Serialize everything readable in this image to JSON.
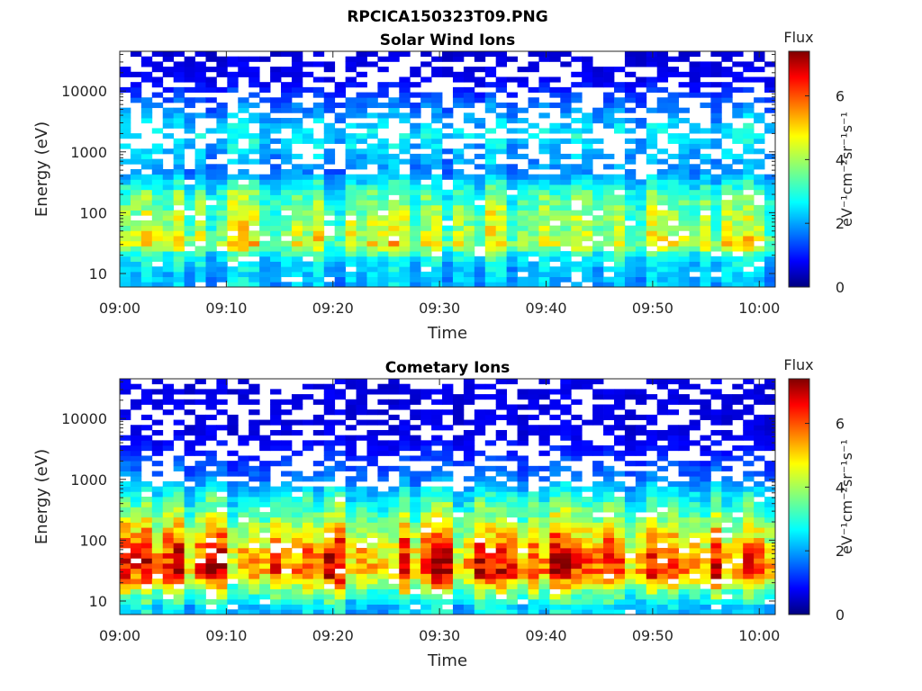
{
  "figure_title": "RPCICA150323T09.PNG",
  "colormap": [
    "#00007f",
    "#0000ff",
    "#007fff",
    "#00ffff",
    "#7fff7f",
    "#ffff00",
    "#ff7f00",
    "#ff0000",
    "#7f0000"
  ],
  "chart_data": [
    {
      "type": "heatmap",
      "title": "Solar Wind Ions",
      "xlabel": "Time",
      "ylabel": "Energy (eV)",
      "x_ticks": [
        "09:00",
        "09:10",
        "09:20",
        "09:30",
        "09:40",
        "09:50",
        "10:00"
      ],
      "y_ticks": [
        "10",
        "100",
        "1000",
        "10000"
      ],
      "y_scale": "log",
      "ylim": [
        6,
        45000
      ],
      "xlim_minutes": [
        0,
        61.5
      ],
      "colorbar": {
        "label": "Flux",
        "unit": "eV⁻¹cm⁻²sr⁻¹s⁻¹",
        "ticks": [
          "0",
          "2",
          "4",
          "6"
        ],
        "range": [
          0,
          7.4
        ]
      },
      "approx_flux_profile": [
        {
          "energy_eV": 8,
          "flux": 2.2
        },
        {
          "energy_eV": 12,
          "flux": 2.3
        },
        {
          "energy_eV": 20,
          "flux": 2.8
        },
        {
          "energy_eV": 30,
          "flux": 4.2
        },
        {
          "energy_eV": 50,
          "flux": 3.8
        },
        {
          "energy_eV": 100,
          "flux": 3.6
        },
        {
          "energy_eV": 200,
          "flux": 3.2
        },
        {
          "energy_eV": 500,
          "flux": 1.8
        },
        {
          "energy_eV": 2000,
          "flux": 2.6
        },
        {
          "energy_eV": 5000,
          "flux": 1.8
        },
        {
          "energy_eV": 15000,
          "flux": 0.8
        },
        {
          "energy_eV": 40000,
          "flux": 0.6
        }
      ]
    },
    {
      "type": "heatmap",
      "title": "Cometary Ions",
      "xlabel": "Time",
      "ylabel": "Energy (eV)",
      "x_ticks": [
        "09:00",
        "09:10",
        "09:20",
        "09:30",
        "09:40",
        "09:50",
        "10:00"
      ],
      "y_ticks": [
        "10",
        "100",
        "1000",
        "10000"
      ],
      "y_scale": "log",
      "ylim": [
        6,
        45000
      ],
      "xlim_minutes": [
        0,
        61.5
      ],
      "colorbar": {
        "label": "Flux",
        "unit": "eV⁻¹cm⁻²sr⁻¹s⁻¹",
        "ticks": [
          "0",
          "2",
          "4",
          "6"
        ],
        "range": [
          0,
          7.4
        ]
      },
      "approx_flux_profile": [
        {
          "energy_eV": 8,
          "flux": 2.4
        },
        {
          "energy_eV": 12,
          "flux": 3.2
        },
        {
          "energy_eV": 20,
          "flux": 4.5
        },
        {
          "energy_eV": 30,
          "flux": 5.8
        },
        {
          "energy_eV": 60,
          "flux": 5.4
        },
        {
          "energy_eV": 100,
          "flux": 4.8
        },
        {
          "energy_eV": 200,
          "flux": 3.8
        },
        {
          "energy_eV": 500,
          "flux": 2.8
        },
        {
          "energy_eV": 1000,
          "flux": 1.8
        },
        {
          "energy_eV": 3000,
          "flux": 1.0
        },
        {
          "energy_eV": 6000,
          "flux": 0.7
        }
      ]
    }
  ]
}
